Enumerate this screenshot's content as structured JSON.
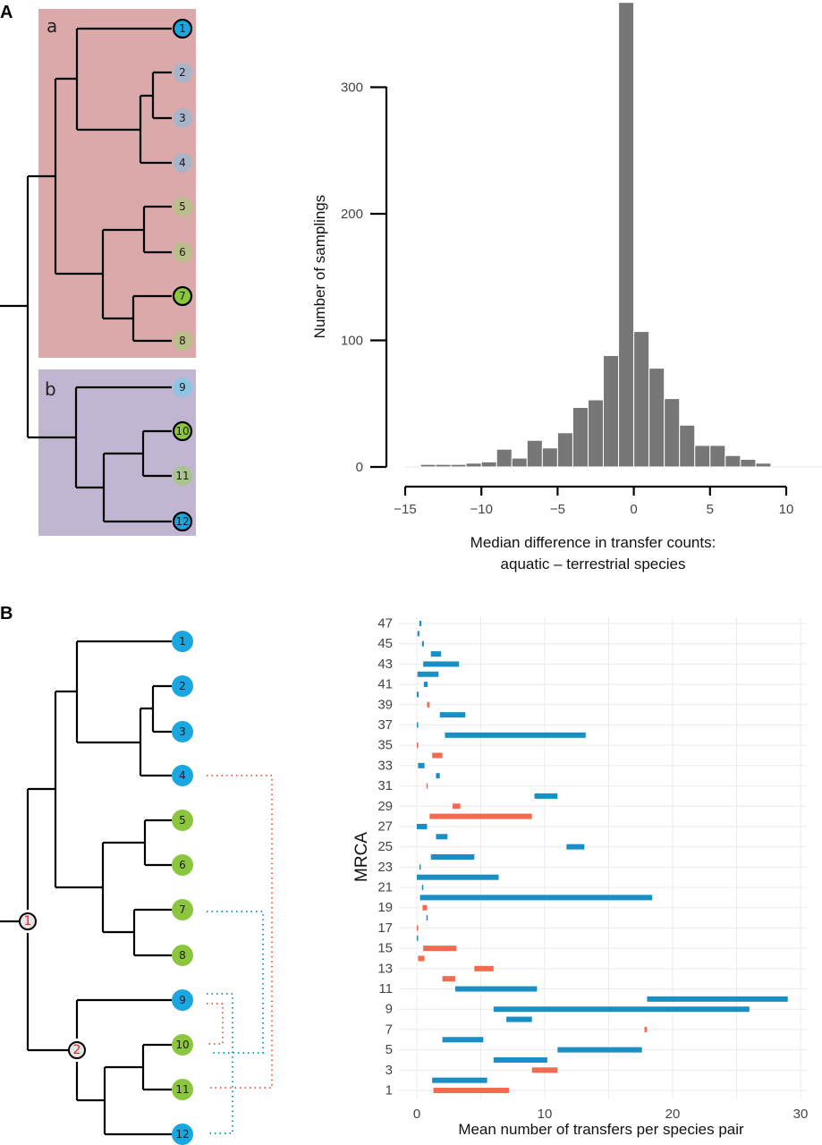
{
  "panels": {
    "A": {
      "letter": "A",
      "tree": {
        "clade_labels": [
          "a",
          "b"
        ],
        "clade_colors": {
          "a": "#dba9a9",
          "b": "#c0b6d1"
        },
        "leaves": [
          {
            "label": "1",
            "color": "#1aa7e0",
            "outlined": true
          },
          {
            "label": "2",
            "color": "#a9b4c8",
            "outlined": false
          },
          {
            "label": "3",
            "color": "#a9b4c8",
            "outlined": false
          },
          {
            "label": "4",
            "color": "#a9b4c8",
            "outlined": false
          },
          {
            "label": "5",
            "color": "#b9be8a",
            "outlined": false
          },
          {
            "label": "6",
            "color": "#b9be8a",
            "outlined": false
          },
          {
            "label": "7",
            "color": "#8cc63f",
            "outlined": true
          },
          {
            "label": "8",
            "color": "#b9be8a",
            "outlined": false
          },
          {
            "label": "9",
            "color": "#8ec5e3",
            "outlined": false
          },
          {
            "label": "10",
            "color": "#8cc63f",
            "outlined": true
          },
          {
            "label": "11",
            "color": "#a9c48c",
            "outlined": false
          },
          {
            "label": "12",
            "color": "#1aa7e0",
            "outlined": true
          }
        ]
      }
    },
    "B": {
      "letter": "B",
      "tree": {
        "leaves": [
          {
            "label": "1",
            "color": "#1aa7e0"
          },
          {
            "label": "2",
            "color": "#1aa7e0"
          },
          {
            "label": "3",
            "color": "#1aa7e0"
          },
          {
            "label": "4",
            "color": "#1aa7e0"
          },
          {
            "label": "5",
            "color": "#8cc63f"
          },
          {
            "label": "6",
            "color": "#8cc63f"
          },
          {
            "label": "7",
            "color": "#8cc63f"
          },
          {
            "label": "8",
            "color": "#8cc63f"
          },
          {
            "label": "9",
            "color": "#1aa7e0"
          },
          {
            "label": "10",
            "color": "#8cc63f"
          },
          {
            "label": "11",
            "color": "#8cc63f"
          },
          {
            "label": "12",
            "color": "#1aa7e0"
          }
        ],
        "internal_nodes": [
          {
            "label": "1",
            "fill": "#e6e6e6",
            "text_color": "#e8242b"
          },
          {
            "label": "2",
            "fill": "#e6e6e6",
            "text_color": "#e8242b"
          }
        ],
        "transfers": [
          {
            "from": "4",
            "to": "11",
            "color": "#f26b4f"
          },
          {
            "from": "9",
            "to": "10",
            "color": "#f26b4f"
          },
          {
            "from": "7",
            "to": "10",
            "color": "#1aa3c4"
          },
          {
            "from": "9",
            "to": "12",
            "color": "#1aa3c4"
          }
        ]
      }
    }
  },
  "chart_data": [
    {
      "type": "bar",
      "subtype": "histogram",
      "title": "",
      "xlabel": "Median difference in transfer counts:",
      "xlabel_line2": "aquatic – terrestrial species",
      "ylabel": "Number of samplings",
      "xlim": [
        -15,
        10
      ],
      "ylim": [
        0,
        367
      ],
      "xticks": [
        -15,
        -10,
        -5,
        0,
        5,
        10
      ],
      "xtick_labels": [
        "−15",
        "−10",
        "−5",
        "0",
        "5",
        "10"
      ],
      "yticks": [
        0,
        100,
        200,
        300
      ],
      "ytick_labels": [
        "0",
        "100",
        "200",
        "300"
      ],
      "bar_color": "#777777",
      "bin_width": 1,
      "bins": [
        {
          "left": -14,
          "count": 2
        },
        {
          "left": -13,
          "count": 2
        },
        {
          "left": -12,
          "count": 2
        },
        {
          "left": -11,
          "count": 3
        },
        {
          "left": -10,
          "count": 4
        },
        {
          "left": -9,
          "count": 14
        },
        {
          "left": -8,
          "count": 7
        },
        {
          "left": -7,
          "count": 21
        },
        {
          "left": -6,
          "count": 15
        },
        {
          "left": -5,
          "count": 27
        },
        {
          "left": -4,
          "count": 47
        },
        {
          "left": -3,
          "count": 53
        },
        {
          "left": -2,
          "count": 88
        },
        {
          "left": -1,
          "count": 367
        },
        {
          "left": 0,
          "count": 107
        },
        {
          "left": 1,
          "count": 78
        },
        {
          "left": 2,
          "count": 54
        },
        {
          "left": 3,
          "count": 33
        },
        {
          "left": 4,
          "count": 17
        },
        {
          "left": 5,
          "count": 17
        },
        {
          "left": 6,
          "count": 9
        },
        {
          "left": 7,
          "count": 6
        },
        {
          "left": 8,
          "count": 3
        }
      ],
      "grid": false
    },
    {
      "type": "range-bar",
      "title": "",
      "xlabel": "Mean number of transfers per species pair",
      "ylabel": "MRCA",
      "xlim": [
        0,
        30
      ],
      "xticks": [
        0,
        10,
        20,
        30
      ],
      "xtick_labels": [
        "0",
        "10",
        "20",
        "30"
      ],
      "ytick_labels": [
        "1",
        "3",
        "5",
        "7",
        "9",
        "11",
        "13",
        "15",
        "17",
        "19",
        "21",
        "23",
        "25",
        "27",
        "29",
        "31",
        "33",
        "35",
        "37",
        "39",
        "41",
        "43",
        "45",
        "47"
      ],
      "grid": true,
      "colors": {
        "blue": "#1a8fc4",
        "red": "#f26b4f"
      },
      "ranges": [
        {
          "mrca": 1,
          "start": 1.3,
          "end": 7.2,
          "color": "red"
        },
        {
          "mrca": 2,
          "start": 1.2,
          "end": 5.5,
          "color": "blue"
        },
        {
          "mrca": 3,
          "start": 9.0,
          "end": 11.0,
          "color": "red"
        },
        {
          "mrca": 4,
          "start": 6.0,
          "end": 10.2,
          "color": "blue"
        },
        {
          "mrca": 5,
          "start": 11.0,
          "end": 17.6,
          "color": "blue"
        },
        {
          "mrca": 6,
          "start": 2.0,
          "end": 5.2,
          "color": "blue"
        },
        {
          "mrca": 7,
          "start": 17.8,
          "end": 18.0,
          "color": "red"
        },
        {
          "mrca": 8,
          "start": 7.0,
          "end": 9.0,
          "color": "blue"
        },
        {
          "mrca": 9,
          "start": 6.0,
          "end": 26.0,
          "color": "blue"
        },
        {
          "mrca": 10,
          "start": 18.0,
          "end": 29.0,
          "color": "blue"
        },
        {
          "mrca": 11,
          "start": 3.0,
          "end": 9.4,
          "color": "blue"
        },
        {
          "mrca": 12,
          "start": 2.0,
          "end": 3.0,
          "color": "red"
        },
        {
          "mrca": 13,
          "start": 4.5,
          "end": 6.0,
          "color": "red"
        },
        {
          "mrca": 14,
          "start": 0.1,
          "end": 0.6,
          "color": "red"
        },
        {
          "mrca": 15,
          "start": 0.5,
          "end": 3.1,
          "color": "red"
        },
        {
          "mrca": 16,
          "start": 0.0,
          "end": 0.05,
          "color": "blue"
        },
        {
          "mrca": 17,
          "start": 0.0,
          "end": 0.05,
          "color": "red"
        },
        {
          "mrca": 18,
          "start": 0.75,
          "end": 0.85,
          "color": "blue"
        },
        {
          "mrca": 19,
          "start": 0.45,
          "end": 0.8,
          "color": "red"
        },
        {
          "mrca": 20,
          "start": 0.25,
          "end": 18.4,
          "color": "blue"
        },
        {
          "mrca": 21,
          "start": 0.4,
          "end": 0.45,
          "color": "blue"
        },
        {
          "mrca": 22,
          "start": 0.0,
          "end": 6.4,
          "color": "blue"
        },
        {
          "mrca": 23,
          "start": 0.2,
          "end": 0.3,
          "color": "blue"
        },
        {
          "mrca": 24,
          "start": 1.1,
          "end": 4.5,
          "color": "blue"
        },
        {
          "mrca": 25,
          "start": 11.7,
          "end": 13.1,
          "color": "blue"
        },
        {
          "mrca": 26,
          "start": 1.5,
          "end": 2.4,
          "color": "blue"
        },
        {
          "mrca": 27,
          "start": 0.0,
          "end": 0.8,
          "color": "blue"
        },
        {
          "mrca": 28,
          "start": 1.0,
          "end": 9.0,
          "color": "red"
        },
        {
          "mrca": 29,
          "start": 2.8,
          "end": 3.4,
          "color": "red"
        },
        {
          "mrca": 30,
          "start": 9.2,
          "end": 11.0,
          "color": "blue"
        },
        {
          "mrca": 31,
          "start": 0.75,
          "end": 0.85,
          "color": "red"
        },
        {
          "mrca": 32,
          "start": 1.5,
          "end": 1.8,
          "color": "blue"
        },
        {
          "mrca": 33,
          "start": 0.1,
          "end": 0.6,
          "color": "blue"
        },
        {
          "mrca": 34,
          "start": 1.2,
          "end": 2.0,
          "color": "red"
        },
        {
          "mrca": 35,
          "start": 0.0,
          "end": 0.1,
          "color": "red"
        },
        {
          "mrca": 36,
          "start": 2.2,
          "end": 13.2,
          "color": "blue"
        },
        {
          "mrca": 37,
          "start": 0.0,
          "end": 0.1,
          "color": "blue"
        },
        {
          "mrca": 38,
          "start": 1.8,
          "end": 3.8,
          "color": "blue"
        },
        {
          "mrca": 39,
          "start": 0.8,
          "end": 1.0,
          "color": "red"
        },
        {
          "mrca": 40,
          "start": 0.0,
          "end": 0.15,
          "color": "blue"
        },
        {
          "mrca": 41,
          "start": 0.55,
          "end": 0.85,
          "color": "blue"
        },
        {
          "mrca": 42,
          "start": 0.05,
          "end": 1.7,
          "color": "blue"
        },
        {
          "mrca": 43,
          "start": 0.5,
          "end": 3.3,
          "color": "blue"
        },
        {
          "mrca": 44,
          "start": 1.1,
          "end": 1.9,
          "color": "blue"
        },
        {
          "mrca": 45,
          "start": 0.4,
          "end": 0.55,
          "color": "blue"
        },
        {
          "mrca": 46,
          "start": 0.05,
          "end": 0.2,
          "color": "blue"
        },
        {
          "mrca": 47,
          "start": 0.2,
          "end": 0.35,
          "color": "blue"
        }
      ]
    }
  ]
}
